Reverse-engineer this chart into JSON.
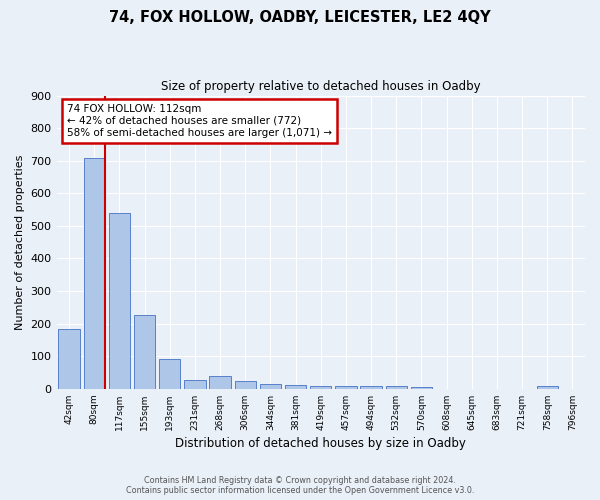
{
  "title": "74, FOX HOLLOW, OADBY, LEICESTER, LE2 4QY",
  "subtitle": "Size of property relative to detached houses in Oadby",
  "xlabel": "Distribution of detached houses by size in Oadby",
  "ylabel": "Number of detached properties",
  "footer1": "Contains HM Land Registry data © Crown copyright and database right 2024.",
  "footer2": "Contains public sector information licensed under the Open Government Licence v3.0.",
  "categories": [
    "42sqm",
    "80sqm",
    "117sqm",
    "155sqm",
    "193sqm",
    "231sqm",
    "268sqm",
    "306sqm",
    "344sqm",
    "381sqm",
    "419sqm",
    "457sqm",
    "494sqm",
    "532sqm",
    "570sqm",
    "608sqm",
    "645sqm",
    "683sqm",
    "721sqm",
    "758sqm",
    "796sqm"
  ],
  "values": [
    185,
    708,
    540,
    228,
    90,
    28,
    38,
    25,
    15,
    12,
    10,
    8,
    10,
    8,
    5,
    0,
    0,
    0,
    0,
    10,
    0
  ],
  "bar_color": "#aec6e8",
  "bar_edge_color": "#4472c4",
  "background_color": "#eaf0f8",
  "grid_color": "#ffffff",
  "vline_color": "#cc0000",
  "annotation_text": "74 FOX HOLLOW: 112sqm\n← 42% of detached houses are smaller (772)\n58% of semi-detached houses are larger (1,071) →",
  "annotation_box_color": "#ffffff",
  "annotation_box_edge": "#cc0000",
  "ylim": [
    0,
    900
  ],
  "yticks": [
    0,
    100,
    200,
    300,
    400,
    500,
    600,
    700,
    800,
    900
  ]
}
